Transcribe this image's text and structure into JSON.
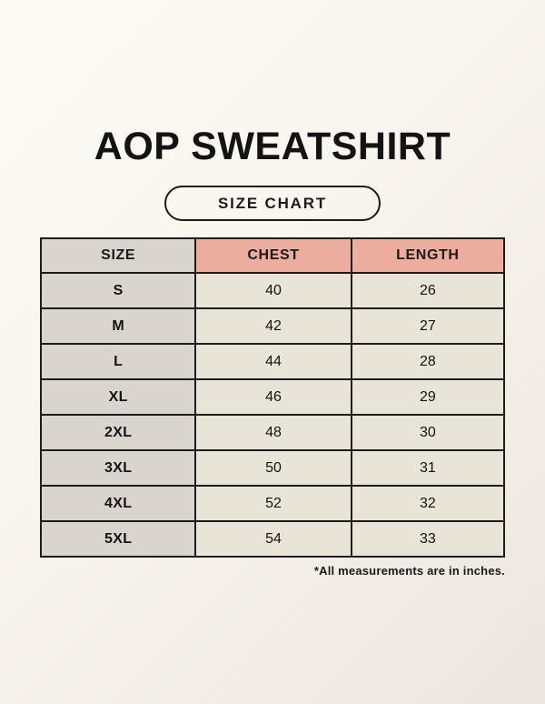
{
  "page": {
    "title": "AOP SWEATSHIRT",
    "badge_label": "SIZE CHART",
    "footnote": "*All measurements are in inches."
  },
  "chart_data": {
    "type": "table",
    "title": "AOP Sweatshirt size chart (inches)",
    "columns": [
      "SIZE",
      "CHEST",
      "LENGTH"
    ],
    "rows": [
      {
        "size": "S",
        "chest": 40,
        "length": 26
      },
      {
        "size": "M",
        "chest": 42,
        "length": 27
      },
      {
        "size": "L",
        "chest": 44,
        "length": 28
      },
      {
        "size": "XL",
        "chest": 46,
        "length": 29
      },
      {
        "size": "2XL",
        "chest": 48,
        "length": 30
      },
      {
        "size": "3XL",
        "chest": 50,
        "length": 31
      },
      {
        "size": "4XL",
        "chest": 52,
        "length": 32
      },
      {
        "size": "5XL",
        "chest": 54,
        "length": 33
      }
    ],
    "units": "inches"
  },
  "colors": {
    "background_top": "#fbf9f3",
    "background_bottom": "#ebe7df",
    "accent_header": "#edad9e",
    "size_column": "#d9d4ce",
    "data_cell": "#e9e4d8",
    "border": "#1d1c1a",
    "text": "#141414"
  }
}
